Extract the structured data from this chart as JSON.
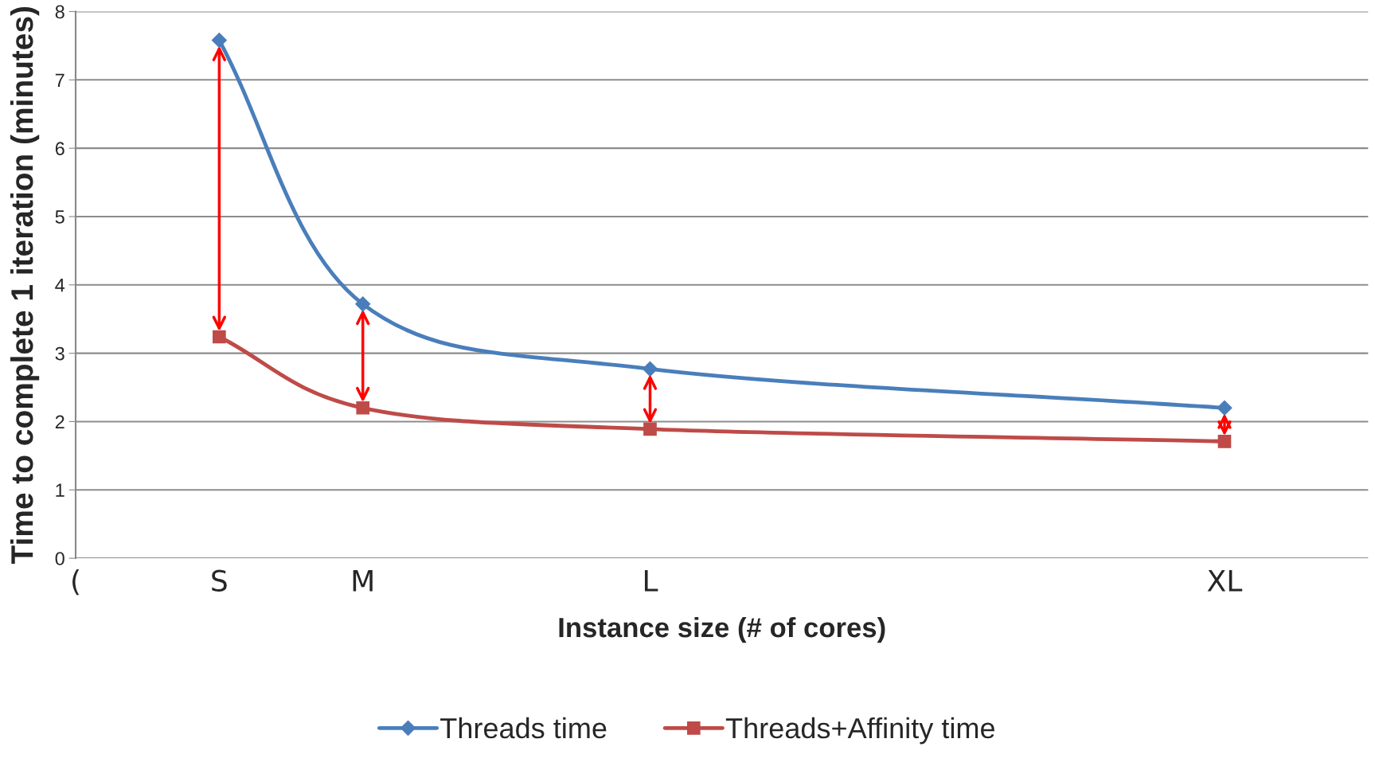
{
  "chart_data": {
    "type": "line",
    "xlabel": "Instance size (# of cores)",
    "ylabel": "Time to complete 1 iteration (minutes)",
    "categories": [
      "(",
      "S",
      "M",
      null,
      "L",
      null,
      null,
      null,
      "XL"
    ],
    "ylim": [
      0,
      8
    ],
    "yticks": [
      0,
      1,
      2,
      3,
      4,
      5,
      6,
      7,
      8
    ],
    "grid": "y",
    "legend": "bottom",
    "series": [
      {
        "name": "Threads time",
        "color": "#4a7ebb",
        "marker": "diamond",
        "values": [
          null,
          7.58,
          3.72,
          null,
          2.77,
          null,
          null,
          null,
          2.2
        ]
      },
      {
        "name": "Threads+Affinity time",
        "color": "#be4b48",
        "marker": "square",
        "values": [
          null,
          3.24,
          2.2,
          null,
          1.89,
          null,
          null,
          null,
          1.71
        ]
      }
    ]
  }
}
